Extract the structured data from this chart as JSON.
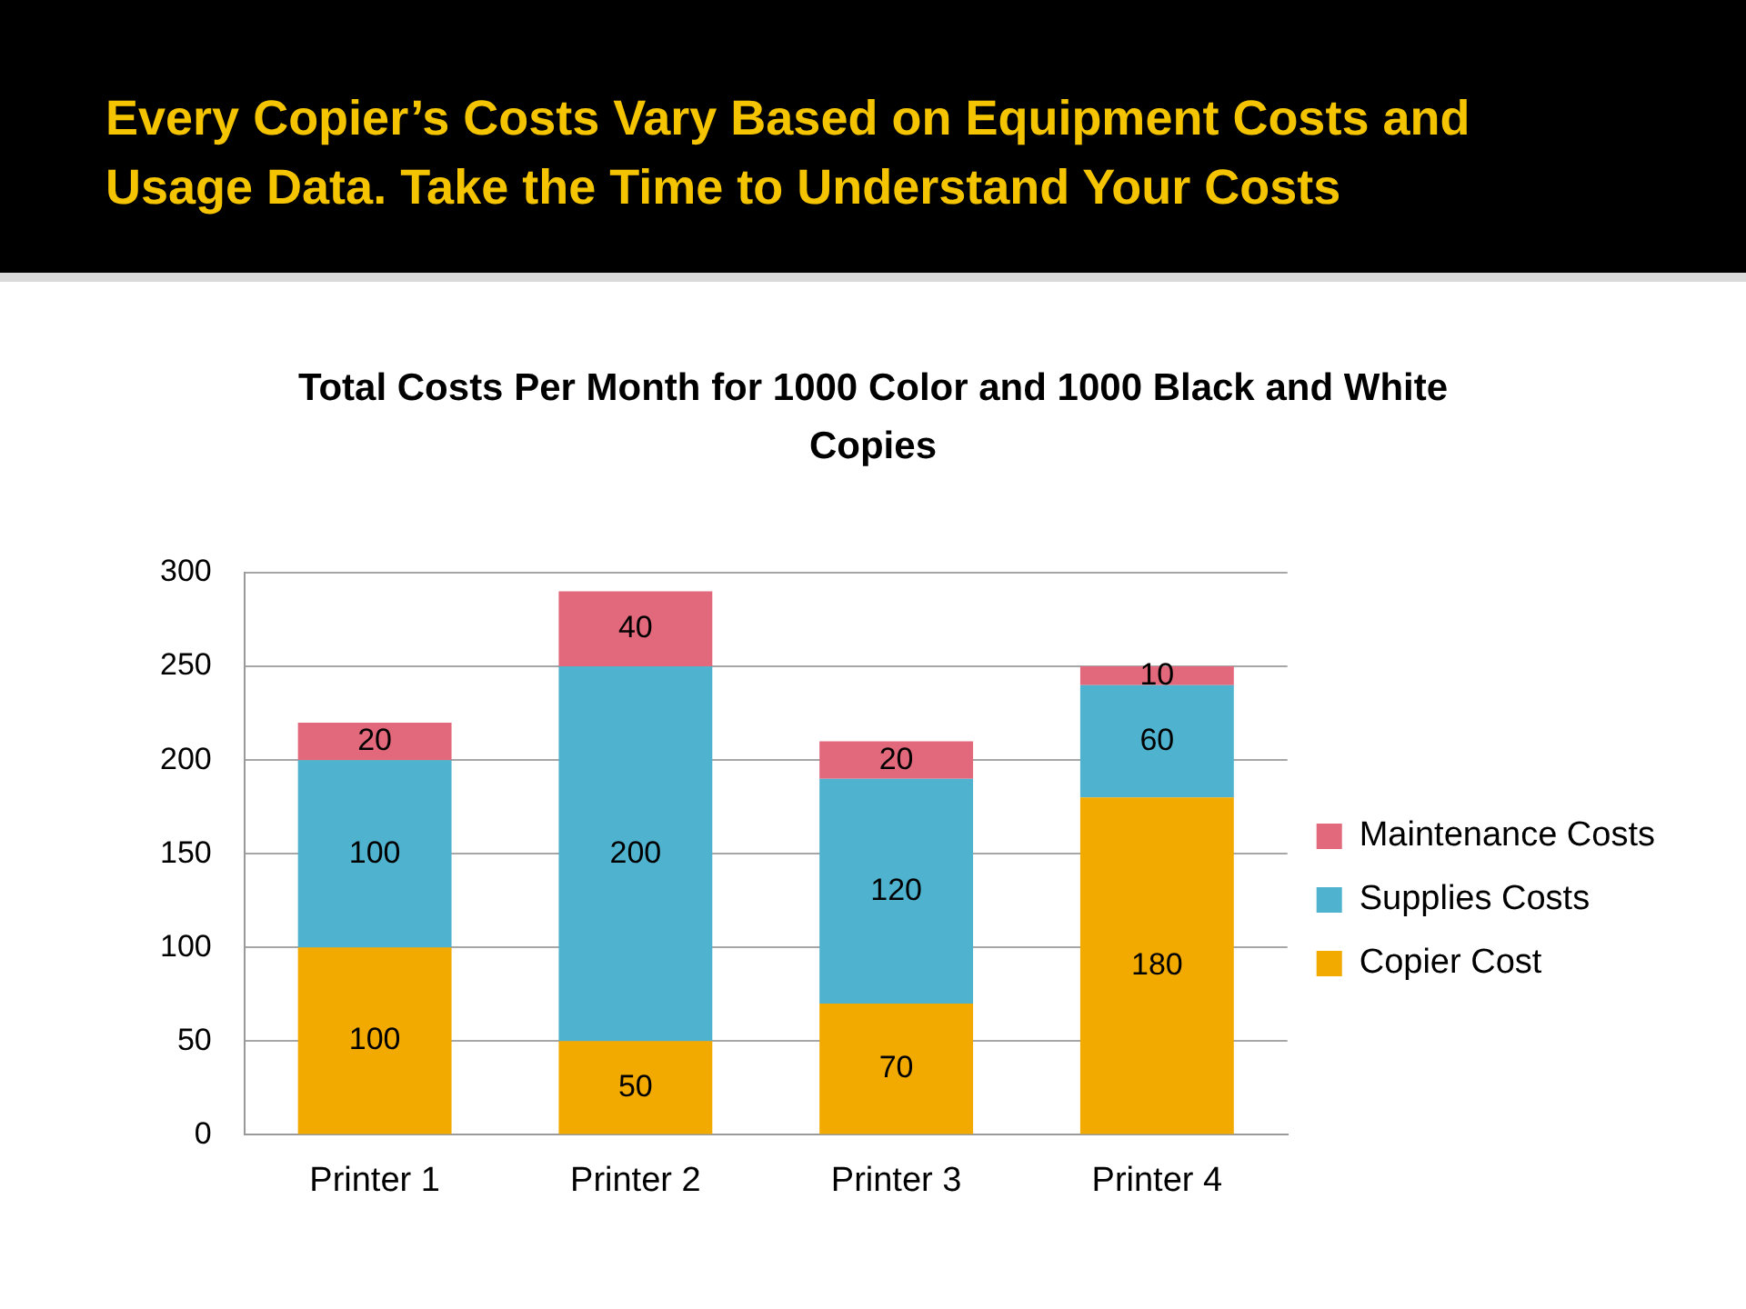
{
  "chart_data": {
    "type": "bar",
    "title": "Every Copier’s Costs Vary Based on Equipment Costs and Usage Data.  Take the Time to Understand Your Costs",
    "subtitle": "Total Costs Per Month for 1000 Color and 1000 Black and White Copies",
    "categories": [
      "Printer 1",
      "Printer 2",
      "Printer 3",
      "Printer 4"
    ],
    "series": [
      {
        "name": "Copier Cost",
        "color": "#f2aa00",
        "values": [
          100,
          50,
          70,
          180
        ]
      },
      {
        "name": "Supplies Costs",
        "color": "#4fb3cf",
        "values": [
          100,
          200,
          120,
          60
        ]
      },
      {
        "name": "Maintenance Costs",
        "color": "#e2697c",
        "values": [
          20,
          40,
          20,
          10
        ]
      }
    ],
    "stacked": true,
    "ylim": [
      0,
      300
    ],
    "yticks": [
      0,
      50,
      100,
      150,
      200,
      250,
      300
    ],
    "grid": "y",
    "legend": "right",
    "data_labels": true
  }
}
